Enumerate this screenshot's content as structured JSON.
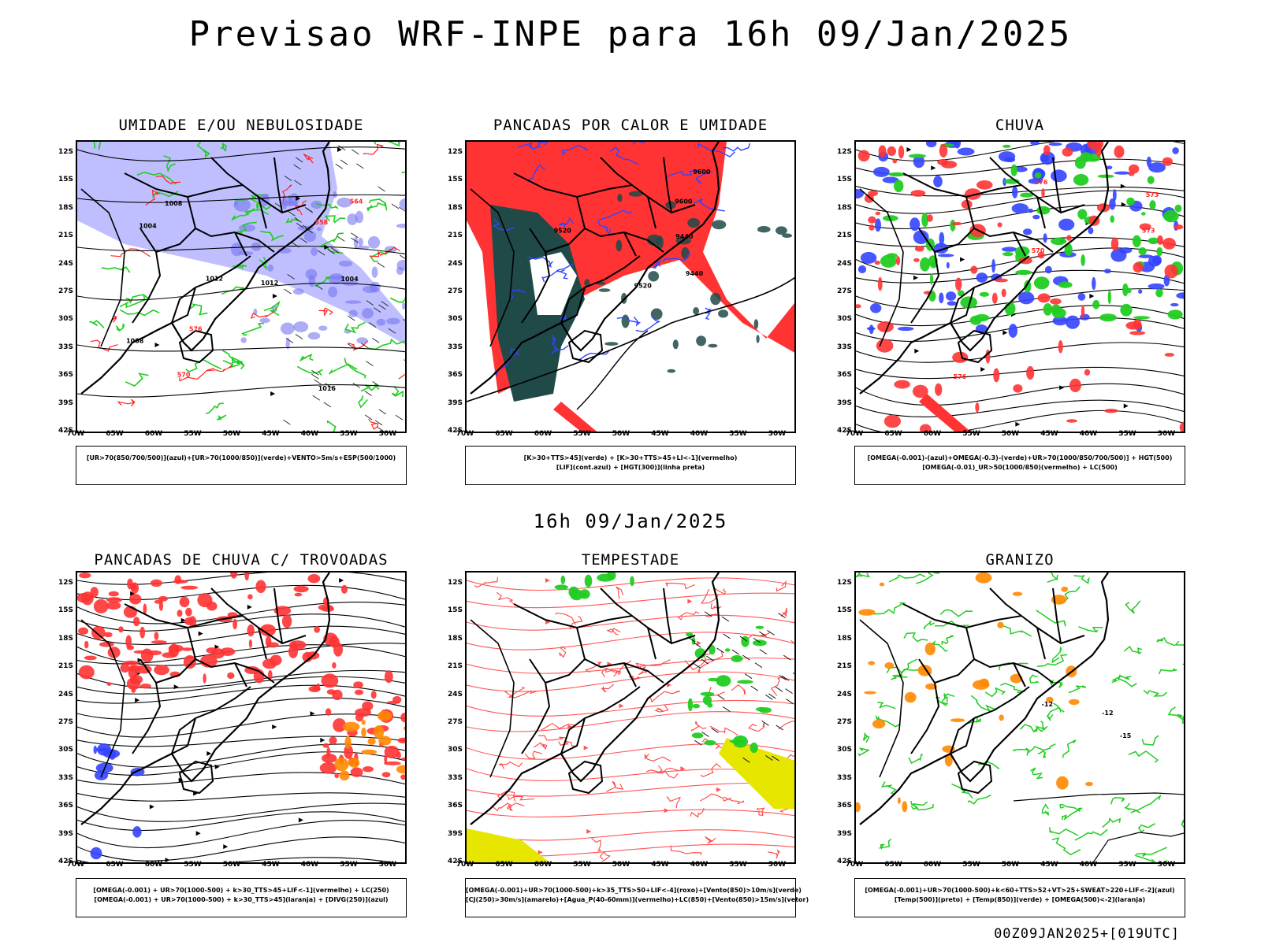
{
  "title": "Previsao WRF-INPE  para 16h 09/Jan/2025",
  "subtitle": "16h 09/Jan/2025",
  "footer": "00Z09JAN2025+[019UTC]",
  "lat_ticks": [
    "12S",
    "15S",
    "18S",
    "21S",
    "24S",
    "27S",
    "30S",
    "33S",
    "36S",
    "39S",
    "42S"
  ],
  "lon_ticks": [
    "70W",
    "65W",
    "60W",
    "55W",
    "50W",
    "45W",
    "40W",
    "35W",
    "30W"
  ],
  "panels": [
    {
      "title": "UMIDADE E/OU NEBULOSIDADE",
      "legend": [
        "[UR>70(850/700/500)](azul)+[UR>70(1000/850)](verde)+VENTO>5m/s+ESP(500/1000)"
      ],
      "contour_labels": [
        "1008",
        "1004",
        "1012",
        "1016",
        "1008",
        "1004",
        "1012",
        "570",
        "576",
        "564",
        "558"
      ],
      "style": "humidity"
    },
    {
      "title": "PANCADAS POR CALOR E UMIDADE",
      "legend": [
        "[K>30+TTS>45](verde) + [K>30+TTS>45+LI<-1](vermelho)",
        "[LIF](cont.azul) + [HGT(300)](linha preta)"
      ],
      "contour_labels": [
        "9600",
        "9520",
        "9440",
        "9600",
        "9520",
        "9440"
      ],
      "style": "heat"
    },
    {
      "title": "CHUVA",
      "legend": [
        "[OMEGA(-0.001)-(azul)+OMEGA(-0.3)-(verde)+UR>70(1000/850/700/500)] + HGT(500)",
        "[OMEGA(-0.01)_UR>50(1000/850)(vermelho) + LC(500)"
      ],
      "contour_labels": [
        "576",
        "576",
        "573",
        "570",
        "573"
      ],
      "style": "rain"
    },
    {
      "title": "PANCADAS DE CHUVA C/ TROVOADAS",
      "legend": [
        "[OMEGA(-0.001) + UR>70(1000-500) + k>30_TTS>45+LIF<-1](vermelho) + LC(250)",
        "[OMEGA(-0.001) + UR>70(1000-500) + k>30_TTS>45](laranja) + [DIVG(250)](azul)"
      ],
      "contour_labels": [],
      "style": "thunder"
    },
    {
      "title": "TEMPESTADE",
      "legend": [
        "[OMEGA(-0.001)+UR>70(1000-500)+k>35_TTS>50+LIF<-4](roxo)+[Vento(850)>10m/s](verde)",
        "[CJ(250)>30m/s](amarelo)+[Agua_P(40-60mm)](vermelho)+LC(850)+[Vento(850)>15m/s](vetor)"
      ],
      "contour_labels": [],
      "style": "storm"
    },
    {
      "title": "GRANIZO",
      "legend": [
        "[OMEGA(-0.001)+UR>70(1000-500)+k<60+TTS>52+VT>25+SWEAT>220+LIF<-2](azul)",
        "[Temp(500)](preto) + [Temp(850)](verde) + [OMEGA(500)<-2](laranja)"
      ],
      "contour_labels": [
        "-12",
        "-12",
        "-15"
      ],
      "style": "hail"
    }
  ],
  "colors": {
    "blue_fill": "#aaaaff",
    "green_line": "#22cc22",
    "red_fill": "#ff3333",
    "dark_teal": "#1f4a48",
    "yellow_fill": "#e6e600",
    "orange": "#ff8800",
    "blue_line": "#3344ff"
  }
}
